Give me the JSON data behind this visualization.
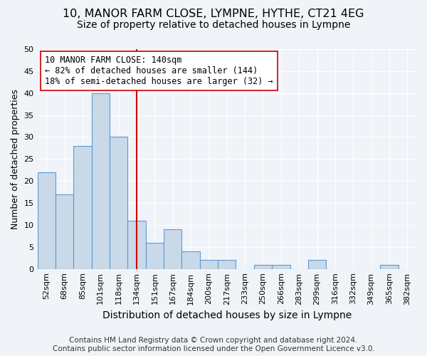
{
  "title": "10, MANOR FARM CLOSE, LYMPNE, HYTHE, CT21 4EG",
  "subtitle": "Size of property relative to detached houses in Lympne",
  "xlabel": "Distribution of detached houses by size in Lympne",
  "ylabel": "Number of detached properties",
  "categories": [
    "52sqm",
    "68sqm",
    "85sqm",
    "101sqm",
    "118sqm",
    "134sqm",
    "151sqm",
    "167sqm",
    "184sqm",
    "200sqm",
    "217sqm",
    "233sqm",
    "250sqm",
    "266sqm",
    "283sqm",
    "299sqm",
    "316sqm",
    "332sqm",
    "349sqm",
    "365sqm",
    "382sqm"
  ],
  "values": [
    22,
    17,
    28,
    40,
    30,
    11,
    6,
    9,
    4,
    2,
    2,
    0,
    1,
    1,
    0,
    2,
    0,
    0,
    0,
    1,
    0
  ],
  "bar_color": "#c9d9e8",
  "bar_edge_color": "#5b9bd5",
  "bar_width": 1.0,
  "property_line_x": 5.0,
  "property_line_color": "#cc0000",
  "annotation_line1": "10 MANOR FARM CLOSE: 140sqm",
  "annotation_line2": "← 82% of detached houses are smaller (144)",
  "annotation_line3": "18% of semi-detached houses are larger (32) →",
  "annotation_box_color": "#ffffff",
  "annotation_box_edge": "#cc0000",
  "ylim": [
    0,
    50
  ],
  "yticks": [
    0,
    5,
    10,
    15,
    20,
    25,
    30,
    35,
    40,
    45,
    50
  ],
  "footer_line1": "Contains HM Land Registry data © Crown copyright and database right 2024.",
  "footer_line2": "Contains public sector information licensed under the Open Government Licence v3.0.",
  "background_color": "#f0f4f9",
  "title_fontsize": 11.5,
  "subtitle_fontsize": 10,
  "xlabel_fontsize": 10,
  "ylabel_fontsize": 9,
  "tick_fontsize": 8,
  "annotation_fontsize": 8.5,
  "footer_fontsize": 7.5
}
